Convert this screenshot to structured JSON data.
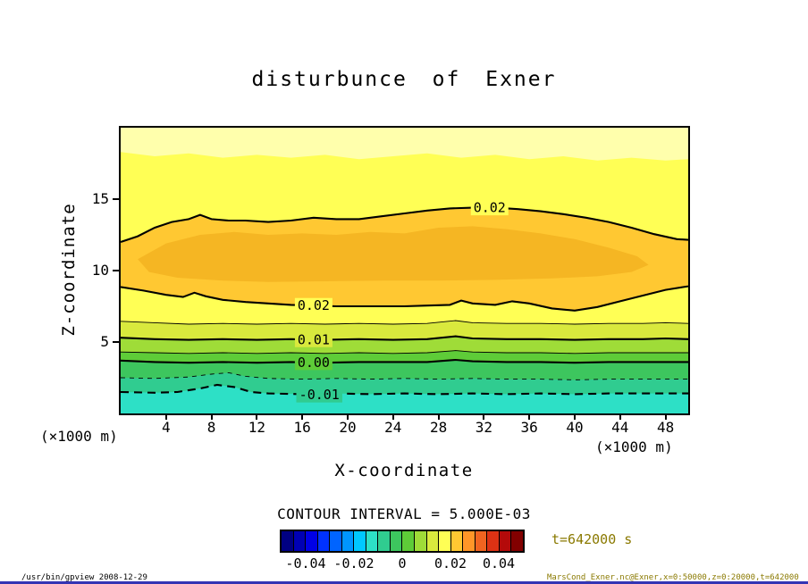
{
  "title": "disturbunce of Exner",
  "axes": {
    "x_label": "X-coordinate",
    "y_label": "Z-coordinate",
    "x_unit": "(×1000 m)",
    "y_unit": "(×1000 m)",
    "x_ticks": [
      4,
      8,
      12,
      16,
      20,
      24,
      28,
      32,
      36,
      40,
      44,
      48
    ],
    "y_ticks": [
      15,
      10,
      5
    ]
  },
  "caption": "CONTOUR INTERVAL = 5.000E-03",
  "time_label": "t=642000 s",
  "colorbar": {
    "min": -0.05,
    "max": 0.05,
    "ticks": [
      "-0.04",
      "-0.02",
      "0",
      "0.02",
      "0.04"
    ],
    "tick_values": [
      -0.04,
      -0.02,
      0,
      0.02,
      0.04
    ],
    "segment_colors": [
      "#000082",
      "#0000b4",
      "#0000e6",
      "#0032ff",
      "#0064ff",
      "#0096ff",
      "#00c8ff",
      "#2de0c6",
      "#30cc90",
      "#3dc65e",
      "#5ecc38",
      "#9fdc38",
      "#d9e93d",
      "#ffff55",
      "#ffc832",
      "#ff9628",
      "#f06420",
      "#dc3214",
      "#b40a0a",
      "#820000"
    ]
  },
  "footer": {
    "left": "/usr/bin/gpview  2008-12-29",
    "right": "MarsCond_Exner.nc@Exner,x=0:50000,z=0:20000,t=642000"
  },
  "chart_data": {
    "type": "contour",
    "title": "disturbunce of Exner",
    "xlabel": "X-coordinate (×1000 m)",
    "ylabel": "Z-coordinate (×1000 m)",
    "xlim": [
      0,
      50
    ],
    "ylim": [
      0,
      20
    ],
    "contour_interval": 0.005,
    "labeled_levels": [
      0.02,
      0.01,
      0.0,
      -0.01
    ],
    "band_colors": [
      "#ffffac",
      "#ffff55",
      "#ffc832",
      "#ffff55",
      "#d9e93d",
      "#9fdc38",
      "#5ecc38",
      "#3dc65e",
      "#30cc90",
      "#2de0c6"
    ],
    "boundaries": [
      {
        "level": null,
        "line": "none",
        "points": [
          [
            0,
            18.3
          ],
          [
            3,
            18.0
          ],
          [
            6,
            18.2
          ],
          [
            9,
            17.9
          ],
          [
            12,
            18.1
          ],
          [
            15,
            17.9
          ],
          [
            18,
            18.1
          ],
          [
            21,
            17.8
          ],
          [
            24,
            18.0
          ],
          [
            27,
            18.2
          ],
          [
            30,
            17.9
          ],
          [
            33,
            18.1
          ],
          [
            36,
            17.8
          ],
          [
            39,
            18.0
          ],
          [
            42,
            17.7
          ],
          [
            45,
            17.9
          ],
          [
            48,
            17.7
          ],
          [
            50,
            17.8
          ]
        ]
      },
      {
        "level": 0.02,
        "line": "solid-thick",
        "points": [
          [
            0,
            12.0
          ],
          [
            1.5,
            12.4
          ],
          [
            3,
            13.0
          ],
          [
            4.5,
            13.4
          ],
          [
            6,
            13.6
          ],
          [
            7,
            13.9
          ],
          [
            8,
            13.6
          ],
          [
            9.5,
            13.5
          ],
          [
            11,
            13.5
          ],
          [
            13,
            13.4
          ],
          [
            15,
            13.5
          ],
          [
            17,
            13.7
          ],
          [
            19,
            13.6
          ],
          [
            21,
            13.6
          ],
          [
            23,
            13.8
          ],
          [
            25,
            14.0
          ],
          [
            27,
            14.2
          ],
          [
            29,
            14.35
          ],
          [
            31,
            14.4
          ],
          [
            33,
            14.4
          ],
          [
            35,
            14.3
          ],
          [
            37,
            14.15
          ],
          [
            39,
            13.95
          ],
          [
            41,
            13.7
          ],
          [
            43,
            13.4
          ],
          [
            45,
            13.0
          ],
          [
            47,
            12.55
          ],
          [
            49,
            12.2
          ],
          [
            50,
            12.15
          ]
        ]
      },
      {
        "level": 0.02,
        "line": "solid-thick",
        "points": [
          [
            0,
            8.85
          ],
          [
            2,
            8.6
          ],
          [
            4,
            8.3
          ],
          [
            5.5,
            8.15
          ],
          [
            6.5,
            8.45
          ],
          [
            7.5,
            8.2
          ],
          [
            9,
            7.95
          ],
          [
            11,
            7.8
          ],
          [
            13,
            7.7
          ],
          [
            15,
            7.6
          ],
          [
            17,
            7.55
          ],
          [
            19,
            7.5
          ],
          [
            21,
            7.5
          ],
          [
            23,
            7.5
          ],
          [
            25,
            7.5
          ],
          [
            27,
            7.55
          ],
          [
            29,
            7.6
          ],
          [
            30,
            7.9
          ],
          [
            31,
            7.7
          ],
          [
            33,
            7.6
          ],
          [
            34.5,
            7.85
          ],
          [
            36,
            7.7
          ],
          [
            38,
            7.35
          ],
          [
            40,
            7.2
          ],
          [
            42,
            7.45
          ],
          [
            44,
            7.85
          ],
          [
            46,
            8.25
          ],
          [
            48,
            8.65
          ],
          [
            50,
            8.9
          ]
        ]
      },
      {
        "level": 0.015,
        "line": "solid-thin",
        "points": [
          [
            0,
            6.45
          ],
          [
            3,
            6.35
          ],
          [
            6,
            6.25
          ],
          [
            9,
            6.3
          ],
          [
            12,
            6.25
          ],
          [
            15,
            6.3
          ],
          [
            18,
            6.25
          ],
          [
            21,
            6.3
          ],
          [
            24,
            6.25
          ],
          [
            27,
            6.3
          ],
          [
            29.5,
            6.5
          ],
          [
            31,
            6.35
          ],
          [
            34,
            6.3
          ],
          [
            37,
            6.3
          ],
          [
            40,
            6.25
          ],
          [
            43,
            6.3
          ],
          [
            46,
            6.3
          ],
          [
            48,
            6.35
          ],
          [
            50,
            6.3
          ]
        ]
      },
      {
        "level": 0.01,
        "line": "solid-thick",
        "points": [
          [
            0,
            5.3
          ],
          [
            3,
            5.2
          ],
          [
            6,
            5.15
          ],
          [
            9,
            5.2
          ],
          [
            12,
            5.15
          ],
          [
            15,
            5.2
          ],
          [
            18,
            5.15
          ],
          [
            21,
            5.2
          ],
          [
            24,
            5.15
          ],
          [
            27,
            5.2
          ],
          [
            29.5,
            5.4
          ],
          [
            31,
            5.25
          ],
          [
            34,
            5.2
          ],
          [
            37,
            5.2
          ],
          [
            40,
            5.15
          ],
          [
            43,
            5.2
          ],
          [
            46,
            5.2
          ],
          [
            48,
            5.25
          ],
          [
            50,
            5.2
          ]
        ]
      },
      {
        "level": 0.005,
        "line": "solid-thin",
        "points": [
          [
            0,
            4.3
          ],
          [
            3,
            4.25
          ],
          [
            6,
            4.2
          ],
          [
            9,
            4.25
          ],
          [
            12,
            4.2
          ],
          [
            15,
            4.25
          ],
          [
            18,
            4.2
          ],
          [
            21,
            4.25
          ],
          [
            24,
            4.2
          ],
          [
            27,
            4.25
          ],
          [
            29.5,
            4.4
          ],
          [
            31,
            4.3
          ],
          [
            34,
            4.25
          ],
          [
            37,
            4.25
          ],
          [
            40,
            4.2
          ],
          [
            43,
            4.25
          ],
          [
            46,
            4.25
          ],
          [
            50,
            4.25
          ]
        ]
      },
      {
        "level": 0.0,
        "line": "solid-thick",
        "points": [
          [
            0,
            3.7
          ],
          [
            3,
            3.6
          ],
          [
            6,
            3.55
          ],
          [
            9,
            3.6
          ],
          [
            12,
            3.55
          ],
          [
            15,
            3.6
          ],
          [
            18,
            3.55
          ],
          [
            21,
            3.6
          ],
          [
            24,
            3.6
          ],
          [
            27,
            3.6
          ],
          [
            29.5,
            3.75
          ],
          [
            31,
            3.65
          ],
          [
            34,
            3.6
          ],
          [
            37,
            3.6
          ],
          [
            40,
            3.55
          ],
          [
            43,
            3.6
          ],
          [
            46,
            3.6
          ],
          [
            50,
            3.6
          ]
        ]
      },
      {
        "level": -0.005,
        "line": "dashed-thin",
        "points": [
          [
            0,
            2.5
          ],
          [
            3,
            2.45
          ],
          [
            6,
            2.55
          ],
          [
            8,
            2.75
          ],
          [
            9.5,
            2.85
          ],
          [
            11,
            2.6
          ],
          [
            13,
            2.45
          ],
          [
            16,
            2.4
          ],
          [
            19,
            2.45
          ],
          [
            22,
            2.4
          ],
          [
            25,
            2.45
          ],
          [
            28,
            2.4
          ],
          [
            31,
            2.45
          ],
          [
            34,
            2.4
          ],
          [
            37,
            2.4
          ],
          [
            40,
            2.35
          ],
          [
            43,
            2.4
          ],
          [
            46,
            2.4
          ],
          [
            50,
            2.4
          ]
        ]
      },
      {
        "level": -0.01,
        "line": "dashed-thick",
        "points": [
          [
            0,
            1.5
          ],
          [
            3,
            1.45
          ],
          [
            5,
            1.5
          ],
          [
            7,
            1.75
          ],
          [
            8.5,
            2.0
          ],
          [
            10,
            1.85
          ],
          [
            11.5,
            1.5
          ],
          [
            13,
            1.4
          ],
          [
            16,
            1.35
          ],
          [
            19,
            1.4
          ],
          [
            22,
            1.35
          ],
          [
            25,
            1.4
          ],
          [
            28,
            1.35
          ],
          [
            31,
            1.4
          ],
          [
            34,
            1.35
          ],
          [
            37,
            1.4
          ],
          [
            40,
            1.35
          ],
          [
            43,
            1.4
          ],
          [
            46,
            1.4
          ],
          [
            50,
            1.4
          ]
        ]
      }
    ],
    "core": {
      "level": 0.0225,
      "color": "#f5b623",
      "points": [
        [
          1.5,
          10.8
        ],
        [
          4,
          11.9
        ],
        [
          7,
          12.5
        ],
        [
          10,
          12.7
        ],
        [
          13,
          12.5
        ],
        [
          16,
          12.6
        ],
        [
          19,
          12.5
        ],
        [
          22,
          12.7
        ],
        [
          25,
          12.6
        ],
        [
          28,
          13.0
        ],
        [
          31,
          13.1
        ],
        [
          34,
          12.9
        ],
        [
          37,
          12.6
        ],
        [
          40,
          12.2
        ],
        [
          43,
          11.6
        ],
        [
          45.5,
          11.0
        ],
        [
          46.5,
          10.4
        ],
        [
          45,
          9.9
        ],
        [
          42,
          9.6
        ],
        [
          38,
          9.45
        ],
        [
          33,
          9.35
        ],
        [
          28,
          9.3
        ],
        [
          23,
          9.3
        ],
        [
          18,
          9.25
        ],
        [
          13,
          9.2
        ],
        [
          9,
          9.3
        ],
        [
          5,
          9.5
        ],
        [
          2.5,
          9.9
        ]
      ]
    },
    "contour_labels": [
      {
        "text": "0.02",
        "x": 32.5,
        "z": 14.4,
        "bg": "#ffff55"
      },
      {
        "text": "0.02",
        "x": 17.0,
        "z": 7.55,
        "bg": "#ffff55"
      },
      {
        "text": "0.01",
        "x": 17.0,
        "z": 5.17,
        "bg": "#d9e93d"
      },
      {
        "text": "0.00",
        "x": 17.0,
        "z": 3.57,
        "bg": "#5ecc38"
      },
      {
        "text": "-0.01",
        "x": 17.5,
        "z": 1.3,
        "bg": "#30cc90"
      }
    ]
  }
}
